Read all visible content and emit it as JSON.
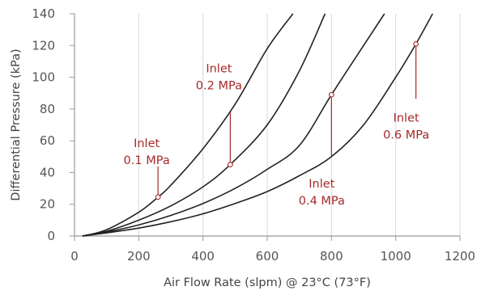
{
  "chart_data": {
    "type": "line",
    "title": "",
    "xlabel": "Air Flow Rate (slpm) @ 23°C (73°F)",
    "ylabel": "Differential Pressure (kPa)",
    "xlim": [
      0,
      1200
    ],
    "ylim": [
      0,
      140
    ],
    "x_ticks": [
      "0",
      "200",
      "400",
      "600",
      "800",
      "1000",
      "1200"
    ],
    "y_ticks": [
      "0",
      "20",
      "40",
      "60",
      "80",
      "100",
      "120",
      "140"
    ],
    "grid": "vertical",
    "colors": {
      "curve": "#222222",
      "annotation": "#a52a2a",
      "grid": "#d9d9d9",
      "axis": "#999999"
    },
    "series": [
      {
        "name": "Inlet 0.1 MPa",
        "x": [
          25,
          100,
          200,
          260,
          300,
          400,
          500,
          600,
          680
        ],
        "y": [
          0,
          4,
          15,
          24.5,
          32,
          55,
          83,
          118,
          140
        ]
      },
      {
        "name": "Inlet 0.2 MPa",
        "x": [
          25,
          100,
          200,
          300,
          400,
          485,
          600,
          700,
          780
        ],
        "y": [
          0,
          3,
          10,
          19,
          31,
          45,
          70,
          104,
          140
        ]
      },
      {
        "name": "Inlet 0.4 MPa",
        "x": [
          25,
          100,
          200,
          300,
          400,
          500,
          600,
          700,
          800,
          900,
          965
        ],
        "y": [
          0,
          2.5,
          7,
          13,
          20.5,
          30,
          42,
          57,
          89,
          120,
          140
        ]
      },
      {
        "name": "Inlet 0.6 MPa",
        "x": [
          25,
          100,
          200,
          300,
          400,
          500,
          600,
          700,
          800,
          900,
          1000,
          1063,
          1115
        ],
        "y": [
          0,
          2,
          5,
          9,
          14,
          20.5,
          28,
          38,
          50,
          70,
          100,
          121,
          140
        ]
      }
    ],
    "annotations": [
      {
        "line1": "Inlet",
        "line2": "0.1 MPa",
        "point": [
          260,
          24.5
        ]
      },
      {
        "line1": "Inlet",
        "line2": "0.2 MPa",
        "point": [
          485,
          45
        ]
      },
      {
        "line1": "Inlet",
        "line2": "0.4 MPa",
        "point": [
          800,
          89
        ]
      },
      {
        "line1": "Inlet",
        "line2": "0.6 MPa",
        "point": [
          1063,
          121
        ]
      }
    ]
  }
}
